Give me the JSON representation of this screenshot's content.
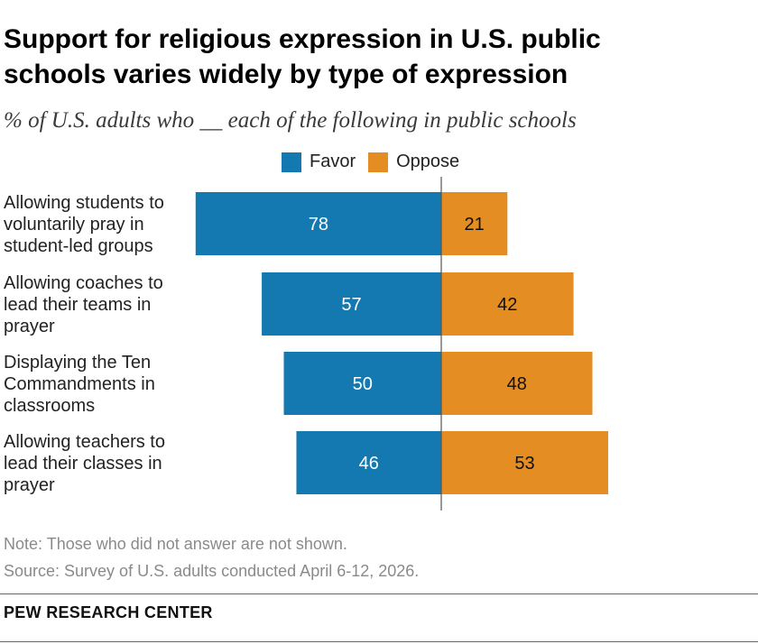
{
  "title_line1": "Support for religious expression in U.S. public",
  "title_line2": "schools varies widely by type of expression",
  "subtitle": "% of U.S. adults who __ each of the following in public schools",
  "colors": {
    "favor": "#1479b0",
    "oppose": "#e38d22",
    "axis": "#555555"
  },
  "chart_data": {
    "type": "bar",
    "orientation": "horizontal-diverging",
    "categories": [
      [
        "Allowing students to",
        "voluntarily pray in",
        "student-led groups"
      ],
      [
        "Allowing coaches to",
        "lead their teams in",
        "prayer"
      ],
      [
        "Displaying the Ten",
        "Commandments in",
        "classrooms"
      ],
      [
        "Allowing teachers to",
        "lead their classes in",
        "prayer"
      ]
    ],
    "series": [
      {
        "name": "Favor",
        "values": [
          78,
          57,
          50,
          46
        ]
      },
      {
        "name": "Oppose",
        "values": [
          21,
          42,
          48,
          53
        ]
      }
    ],
    "legend": "top-center",
    "grid": false
  },
  "note": "Note: Those who did not answer are not shown.",
  "source": "Source: Survey of U.S. adults conducted April 6-12, 2026.",
  "brand": "PEW RESEARCH CENTER"
}
